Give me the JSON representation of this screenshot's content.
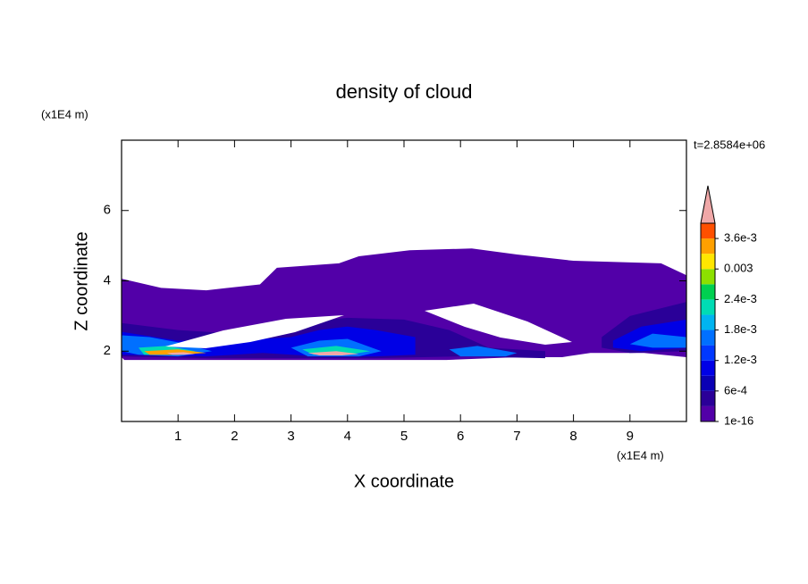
{
  "chart_data": {
    "type": "contour",
    "title": "density of cloud",
    "xlabel": "X coordinate",
    "ylabel": "Z coordinate",
    "x_unit": "(x1E4 m)",
    "y_unit": "(x1E4 m)",
    "time_label": "t=2.8584e+06",
    "xlim": [
      0,
      10
    ],
    "ylim": [
      0,
      8
    ],
    "xticks": [
      1,
      2,
      3,
      4,
      5,
      6,
      7,
      8,
      9
    ],
    "yticks": [
      2,
      4,
      6
    ],
    "colorbar": {
      "levels": [
        1e-16,
        0.0003,
        0.0006,
        0.0009,
        0.0012,
        0.0015,
        0.0018,
        0.0021,
        0.0024,
        0.0027,
        0.003,
        0.0033,
        0.0036,
        0.0039
      ],
      "colors": [
        "#5200a8",
        "#2a0098",
        "#0a00b4",
        "#0000e6",
        "#0038ff",
        "#0070ff",
        "#00b4f0",
        "#00dcb4",
        "#00d050",
        "#8ce000",
        "#ffe600",
        "#ffa000",
        "#ff5000"
      ],
      "extend_color": "#f0a8a8",
      "ticks": [
        {
          "value": 1e-16,
          "label": "1e-16"
        },
        {
          "value": 0.0006,
          "label": "6e-4"
        },
        {
          "value": 0.0012,
          "label": "1.2e-3"
        },
        {
          "value": 0.0018,
          "label": "1.8e-3"
        },
        {
          "value": 0.0024,
          "label": "2.4e-3"
        },
        0.003,
        {
          "value": 0.0036,
          "label": "3.6e-3"
        }
      ]
    },
    "regions": [
      {
        "level": 1e-16,
        "x": [
          0,
          0.7,
          1.5,
          2.45,
          2.75,
          3.85,
          4.2,
          5.1,
          6.2,
          7.0,
          8.0,
          9.55,
          10,
          10,
          9.25,
          8.3,
          7.8,
          7.0,
          5.75,
          4.5,
          2.9,
          1.5,
          0.05,
          0
        ],
        "y": [
          4.06,
          3.8,
          3.73,
          3.9,
          4.37,
          4.5,
          4.7,
          4.87,
          4.92,
          4.75,
          4.57,
          4.5,
          4.16,
          1.83,
          1.95,
          1.95,
          1.83,
          1.83,
          1.75,
          1.75,
          1.75,
          1.75,
          1.75,
          1.83
        ]
      },
      {
        "level": 0.0003,
        "x": [
          0,
          1,
          2,
          3,
          4,
          5,
          5.8,
          6.5,
          7.5,
          7.5,
          6,
          4.5,
          3,
          1.5,
          0
        ],
        "y": [
          2.8,
          2.6,
          2.5,
          2.8,
          2.95,
          2.9,
          2.6,
          2.1,
          2.0,
          1.8,
          1.85,
          1.8,
          1.8,
          1.8,
          1.85
        ]
      },
      {
        "level": 0.0003,
        "x": [
          8.5,
          9,
          10,
          10,
          9,
          8.5
        ],
        "y": [
          2.4,
          3.0,
          3.4,
          2.0,
          1.95,
          2.1
        ]
      },
      {
        "level": 0.0009,
        "x": [
          0,
          1,
          2,
          3,
          3.5,
          4,
          4.5,
          5.2,
          5.2,
          4.5,
          3.5,
          2.5,
          1.5,
          0
        ],
        "y": [
          2.55,
          2.3,
          2.3,
          2.4,
          2.6,
          2.7,
          2.6,
          2.4,
          1.9,
          1.85,
          1.85,
          1.95,
          1.85,
          1.9
        ]
      },
      {
        "level": 0.0009,
        "x": [
          8.7,
          9.2,
          10,
          10,
          9.2,
          8.7
        ],
        "y": [
          2.3,
          2.7,
          2.9,
          2.1,
          2.0,
          2.1
        ]
      },
      {
        "level": 0.0015,
        "x": [
          0,
          0.5,
          1,
          1.6,
          1.0,
          0.3,
          0
        ],
        "y": [
          2.45,
          2.4,
          2.25,
          2.0,
          1.85,
          1.9,
          2.0
        ]
      },
      {
        "level": 0.0015,
        "x": [
          3,
          3.5,
          4,
          4.6,
          4.2,
          3.3
        ],
        "y": [
          2.1,
          2.3,
          2.35,
          2.0,
          1.85,
          1.85
        ]
      },
      {
        "level": 0.0015,
        "x": [
          9,
          9.4,
          10,
          10,
          9.4
        ],
        "y": [
          2.2,
          2.5,
          2.4,
          2.1,
          2.1
        ]
      },
      {
        "level": 0.0015,
        "x": [
          5.8,
          6.3,
          7,
          6.8,
          6
        ],
        "y": [
          2.05,
          2.15,
          1.95,
          1.85,
          1.85
        ]
      },
      {
        "level": 0.0021,
        "x": [
          0.3,
          0.8,
          1.3,
          1.0,
          0.4
        ],
        "y": [
          2.1,
          2.15,
          2.0,
          1.9,
          1.9
        ]
      },
      {
        "level": 0.0021,
        "x": [
          3.2,
          3.8,
          4.4,
          4.0,
          3.4
        ],
        "y": [
          2.05,
          2.15,
          2.0,
          1.9,
          1.9
        ]
      },
      {
        "level": 0.0033,
        "x": [
          0.4,
          1.0,
          1.5,
          1.0,
          0.5
        ],
        "y": [
          2.0,
          2.05,
          1.95,
          1.9,
          1.9
        ]
      },
      {
        "level": 0.0039,
        "x": [
          3.3,
          3.8,
          4.2,
          3.9,
          3.5
        ],
        "y": [
          1.95,
          2.0,
          1.92,
          1.88,
          1.88
        ]
      },
      {
        "level": 0.0039,
        "x": [
          0.8,
          1.1,
          1.3,
          1.1,
          0.9
        ],
        "y": [
          1.95,
          1.97,
          1.92,
          1.9,
          1.9
        ]
      }
    ]
  }
}
